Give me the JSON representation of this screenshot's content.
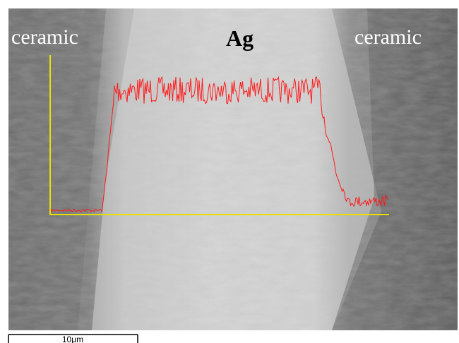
{
  "labels": {
    "left": "ceramic",
    "center": "Ag",
    "right": "ceramic"
  },
  "scale_bar": {
    "label": "10μm"
  }
}
